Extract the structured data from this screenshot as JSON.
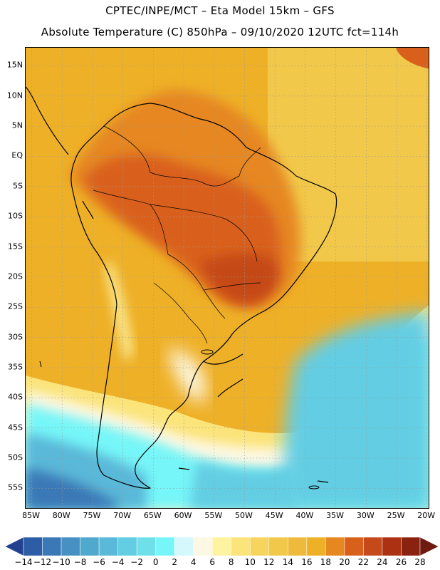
{
  "header": {
    "line1": "CPTEC/INPE/MCT –  Eta Model 15km – GFS",
    "line2": "Absolute Temperature (C) 850hPa – 09/10/2020 12UTC fct=114h"
  },
  "map": {
    "region": "South America",
    "variable": "Absolute Temperature (C) 850hPa",
    "lon_range": [
      -86,
      -19.5
    ],
    "lat_range": [
      18,
      -58.5
    ],
    "lat_labels": [
      {
        "text": "15N",
        "lat": 15
      },
      {
        "text": "10N",
        "lat": 10
      },
      {
        "text": "5N",
        "lat": 5
      },
      {
        "text": "EQ",
        "lat": 0
      },
      {
        "text": "5S",
        "lat": -5
      },
      {
        "text": "10S",
        "lat": -10
      },
      {
        "text": "15S",
        "lat": -15
      },
      {
        "text": "20S",
        "lat": -20
      },
      {
        "text": "25S",
        "lat": -25
      },
      {
        "text": "30S",
        "lat": -30
      },
      {
        "text": "35S",
        "lat": -35
      },
      {
        "text": "40S",
        "lat": -40
      },
      {
        "text": "45S",
        "lat": -45
      },
      {
        "text": "50S",
        "lat": -50
      },
      {
        "text": "55S",
        "lat": -55
      }
    ],
    "lon_labels": [
      {
        "text": "85W",
        "lon": -85
      },
      {
        "text": "80W",
        "lon": -80
      },
      {
        "text": "75W",
        "lon": -75
      },
      {
        "text": "70W",
        "lon": -70
      },
      {
        "text": "65W",
        "lon": -65
      },
      {
        "text": "60W",
        "lon": -60
      },
      {
        "text": "55W",
        "lon": -55
      },
      {
        "text": "50W",
        "lon": -50
      },
      {
        "text": "45W",
        "lon": -45
      },
      {
        "text": "40W",
        "lon": -40
      },
      {
        "text": "35W",
        "lon": -35
      },
      {
        "text": "30W",
        "lon": -30
      },
      {
        "text": "25W",
        "lon": -25
      },
      {
        "text": "20W",
        "lon": -20
      }
    ],
    "colors": {
      "background_band": "#f0b42a",
      "coastline": "#000000",
      "gridline": "#9a9a9a"
    }
  },
  "colorbar": {
    "unit": "C",
    "tick_labels": [
      "-14",
      "-12",
      "-10",
      "-8",
      "-6",
      "-4",
      "-2",
      "0",
      "2",
      "4",
      "6",
      "8",
      "10",
      "12",
      "14",
      "16",
      "18",
      "20",
      "22",
      "24",
      "26",
      "28"
    ],
    "colors": [
      "#23418f",
      "#2d5ea5",
      "#3a78b6",
      "#4690c3",
      "#4ea9cd",
      "#5ab8d8",
      "#63cde3",
      "#6fe0ea",
      "#76f6f8",
      "#d4f8fb",
      "#fdf8e4",
      "#fdf3a0",
      "#fbe47a",
      "#f7d45e",
      "#f2c84a",
      "#efba3c",
      "#eeb027",
      "#e68720",
      "#d9601a",
      "#c54919",
      "#ac3113",
      "#8a2210",
      "#6e1a10"
    ]
  }
}
